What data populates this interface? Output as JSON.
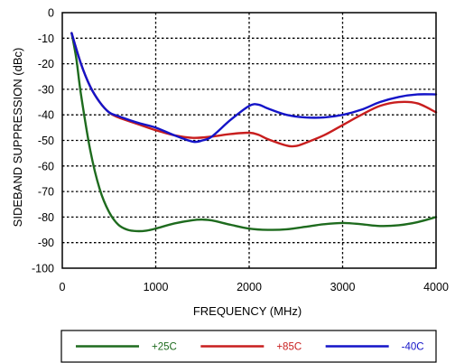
{
  "chart_data": {
    "type": "line",
    "xlabel": "FREQUENCY (MHz)",
    "ylabel": "SIDEBAND SUPPRESSION (dBc)",
    "xlim": [
      0,
      4000
    ],
    "ylim": [
      -100,
      0
    ],
    "x_ticks": [
      0,
      1000,
      2000,
      3000,
      4000
    ],
    "y_ticks": [
      0,
      -10,
      -20,
      -30,
      -40,
      -50,
      -60,
      -70,
      -80,
      -90,
      -100
    ],
    "x_tick_labels": [
      "0",
      "1000",
      "2000",
      "3000",
      "4000"
    ],
    "y_tick_labels": [
      "0",
      "-10",
      "-20",
      "-30",
      "-40",
      "-50",
      "-60",
      "-70",
      "-80",
      "-90",
      "-100"
    ],
    "grid": true,
    "legend_position": "bottom",
    "series": [
      {
        "name": "+25C",
        "color": "#1e6b1e",
        "x": [
          100,
          150,
          200,
          300,
          400,
          500,
          600,
          700,
          800,
          900,
          1000,
          1200,
          1400,
          1500,
          1600,
          1800,
          2000,
          2200,
          2400,
          2600,
          2800,
          3000,
          3200,
          3400,
          3600,
          3800,
          4000
        ],
        "y": [
          -8,
          -18,
          -32,
          -54,
          -69,
          -78,
          -83,
          -85,
          -85.5,
          -85.3,
          -84.5,
          -82.5,
          -81.2,
          -81,
          -81.3,
          -83,
          -84.5,
          -85,
          -84.8,
          -83.8,
          -82.8,
          -82.3,
          -82.8,
          -83.5,
          -83.2,
          -82,
          -80
        ]
      },
      {
        "name": "+85C",
        "color": "#c81e1e",
        "x": [
          100,
          200,
          300,
          400,
          500,
          600,
          800,
          1000,
          1200,
          1400,
          1600,
          1800,
          2000,
          2100,
          2200,
          2400,
          2500,
          2600,
          2800,
          3000,
          3200,
          3400,
          3600,
          3800,
          4000
        ],
        "y": [
          -8,
          -20,
          -29,
          -35,
          -39,
          -41,
          -43.5,
          -46,
          -48,
          -49,
          -48.5,
          -47.5,
          -47,
          -47.8,
          -49.5,
          -52,
          -52.2,
          -51,
          -48,
          -44,
          -40,
          -36.5,
          -35,
          -35.5,
          -39
        ]
      },
      {
        "name": "-40C",
        "color": "#1414c8",
        "x": [
          100,
          200,
          300,
          400,
          500,
          600,
          800,
          1000,
          1200,
          1400,
          1500,
          1600,
          1800,
          2000,
          2100,
          2200,
          2400,
          2600,
          2800,
          3000,
          3200,
          3400,
          3600,
          3800,
          4000
        ],
        "y": [
          -8,
          -20,
          -29,
          -35,
          -39,
          -40.5,
          -43,
          -45,
          -48,
          -50.5,
          -50,
          -48.5,
          -42,
          -36.5,
          -36,
          -37.5,
          -40,
          -41,
          -41,
          -40,
          -38,
          -35,
          -33,
          -32,
          -32
        ]
      }
    ]
  }
}
